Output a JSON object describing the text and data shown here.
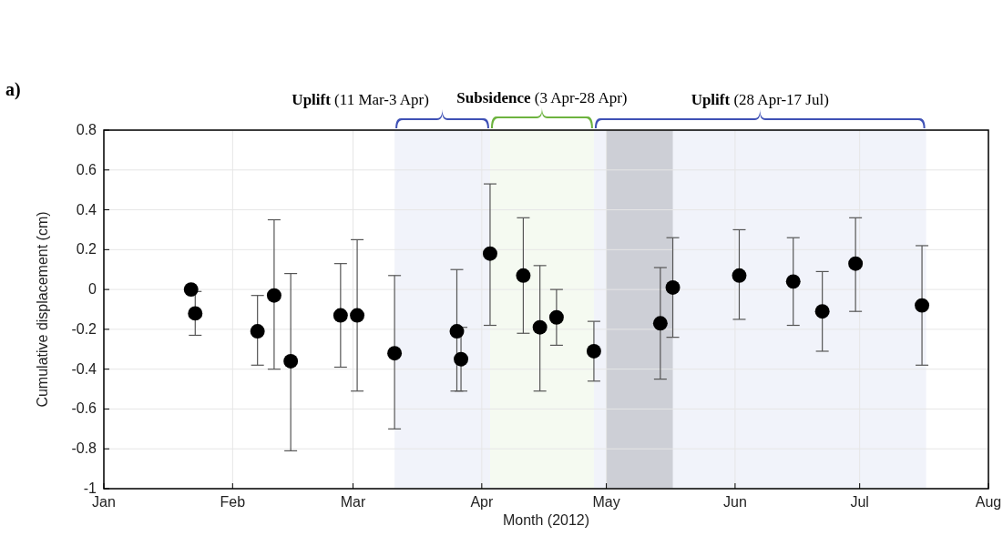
{
  "chart_data": {
    "type": "scatter",
    "xlabel": "Month (2012)",
    "ylabel": "Cumulative displacement (cm)",
    "annotations": [
      "a)"
    ],
    "x": [
      "2012-01-22",
      "2012-01-23",
      "2012-02-07",
      "2012-02-11",
      "2012-02-15",
      "2012-02-27",
      "2012-03-02",
      "2012-03-11",
      "2012-03-26",
      "2012-03-27",
      "2012-04-03",
      "2012-04-11",
      "2012-04-15",
      "2012-04-19",
      "2012-04-28",
      "2012-05-14",
      "2012-05-17",
      "2012-06-02",
      "2012-06-15",
      "2012-06-22",
      "2012-06-30",
      "2012-07-16"
    ],
    "series": [
      {
        "color": "#000000",
        "values": [
          0.0,
          -0.12,
          -0.21,
          -0.03,
          -0.36,
          -0.13,
          -0.13,
          -0.32,
          -0.21,
          -0.35,
          0.18,
          0.07,
          -0.19,
          -0.14,
          -0.31,
          -0.17,
          0.01,
          0.07,
          0.04,
          -0.11,
          0.13,
          -0.08
        ],
        "errors": [
          null,
          [
            -0.23,
            -0.01
          ],
          [
            -0.38,
            -0.03
          ],
          [
            -0.4,
            0.35
          ],
          [
            -0.81,
            0.08
          ],
          [
            -0.39,
            0.13
          ],
          [
            -0.51,
            0.25
          ],
          [
            -0.7,
            0.07
          ],
          [
            -0.51,
            0.1
          ],
          [
            -0.51,
            -0.19
          ],
          [
            -0.18,
            0.53
          ],
          [
            -0.22,
            0.36
          ],
          [
            -0.51,
            0.12
          ],
          [
            -0.28,
            0.0
          ],
          [
            -0.46,
            -0.16
          ],
          [
            -0.45,
            0.11
          ],
          [
            -0.24,
            0.26
          ],
          [
            -0.15,
            0.3
          ],
          [
            -0.18,
            0.26
          ],
          [
            -0.31,
            0.09
          ],
          [
            -0.11,
            0.36
          ],
          [
            -0.38,
            0.22
          ]
        ]
      }
    ],
    "xlim": [
      "2012-01-01",
      "2012-08-01"
    ],
    "xticks": [
      {
        "value": "2012-01-01",
        "label": "Jan"
      },
      {
        "value": "2012-02-01",
        "label": "Feb"
      },
      {
        "value": "2012-03-01",
        "label": "Mar"
      },
      {
        "value": "2012-04-01",
        "label": "Apr"
      },
      {
        "value": "2012-05-01",
        "label": "May"
      },
      {
        "value": "2012-06-01",
        "label": "Jun"
      },
      {
        "value": "2012-07-01",
        "label": "Jul"
      },
      {
        "value": "2012-08-01",
        "label": "Aug"
      }
    ],
    "ylim": [
      -1,
      0.8
    ],
    "yticks": [
      -1,
      -0.8,
      -0.6,
      -0.4,
      -0.2,
      0,
      0.2,
      0.4,
      0.6,
      0.8
    ],
    "bands": [
      {
        "axis": "x",
        "from": "2012-05-01",
        "to": "2012-05-17",
        "color": "#d9d9d9"
      },
      {
        "axis": "x",
        "from": "2012-03-11",
        "to": "2012-04-03",
        "label": "Uplift (11 Mar-3 Apr)",
        "color": "#3f51b5"
      },
      {
        "axis": "x",
        "from": "2012-04-03",
        "to": "2012-04-28",
        "label": "Subsidence (3 Apr-28 Apr)",
        "color": "#6db33f"
      },
      {
        "axis": "x",
        "from": "2012-04-28",
        "to": "2012-07-17",
        "label": "Uplift (28 Apr-17 Jul)",
        "color": "#3f51b5"
      }
    ],
    "grid": true,
    "marker": "circle"
  }
}
